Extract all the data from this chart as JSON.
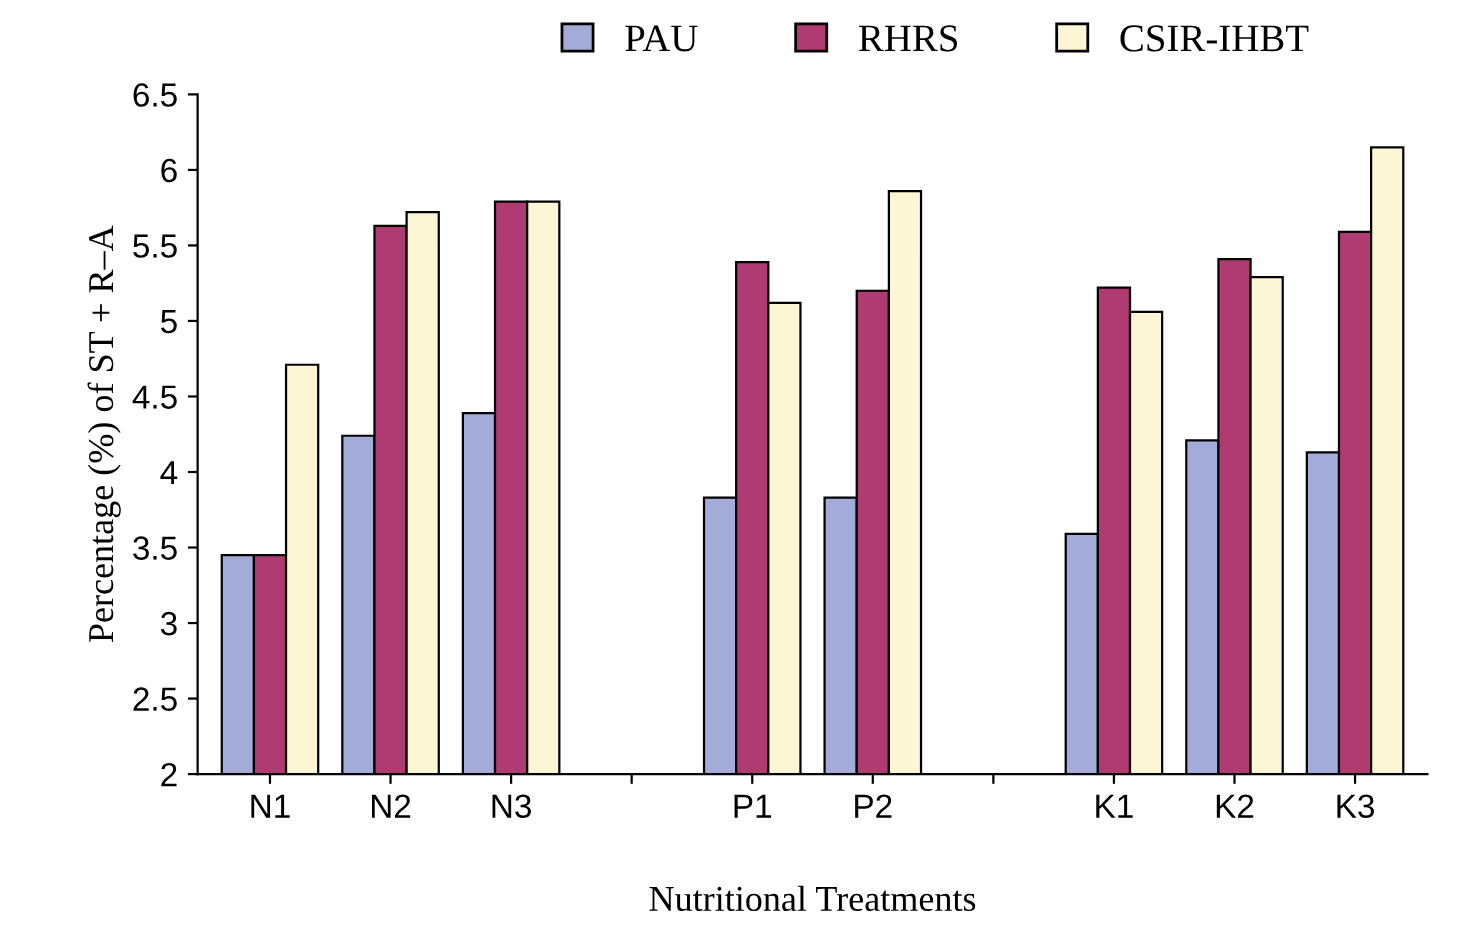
{
  "chart_data": {
    "type": "bar",
    "xlabel": "Nutritional Treatments",
    "ylabel": "Percentage (%) of ST + R–A",
    "categories": [
      "N1",
      "N2",
      "N3",
      null,
      "P1",
      "P2",
      null,
      "K1",
      "K2",
      "K3"
    ],
    "series": [
      {
        "name": "PAU",
        "color": "#a3acd9",
        "values": [
          3.45,
          4.24,
          4.39,
          null,
          3.83,
          3.83,
          null,
          3.59,
          4.21,
          4.13
        ]
      },
      {
        "name": "RHRS",
        "color": "#b03a72",
        "values": [
          3.45,
          5.63,
          5.79,
          null,
          5.39,
          5.2,
          null,
          5.22,
          5.41,
          5.59
        ]
      },
      {
        "name": "CSIR-IHBT",
        "color": "#fdf6d5",
        "values": [
          4.71,
          5.72,
          5.79,
          null,
          5.12,
          5.86,
          null,
          5.06,
          5.29,
          6.15
        ]
      }
    ],
    "ylim": [
      2,
      6.5
    ],
    "yticks": [
      2,
      2.5,
      3,
      3.5,
      4,
      4.5,
      5,
      5.5,
      6,
      6.5
    ],
    "grid": false,
    "legend": "top"
  }
}
